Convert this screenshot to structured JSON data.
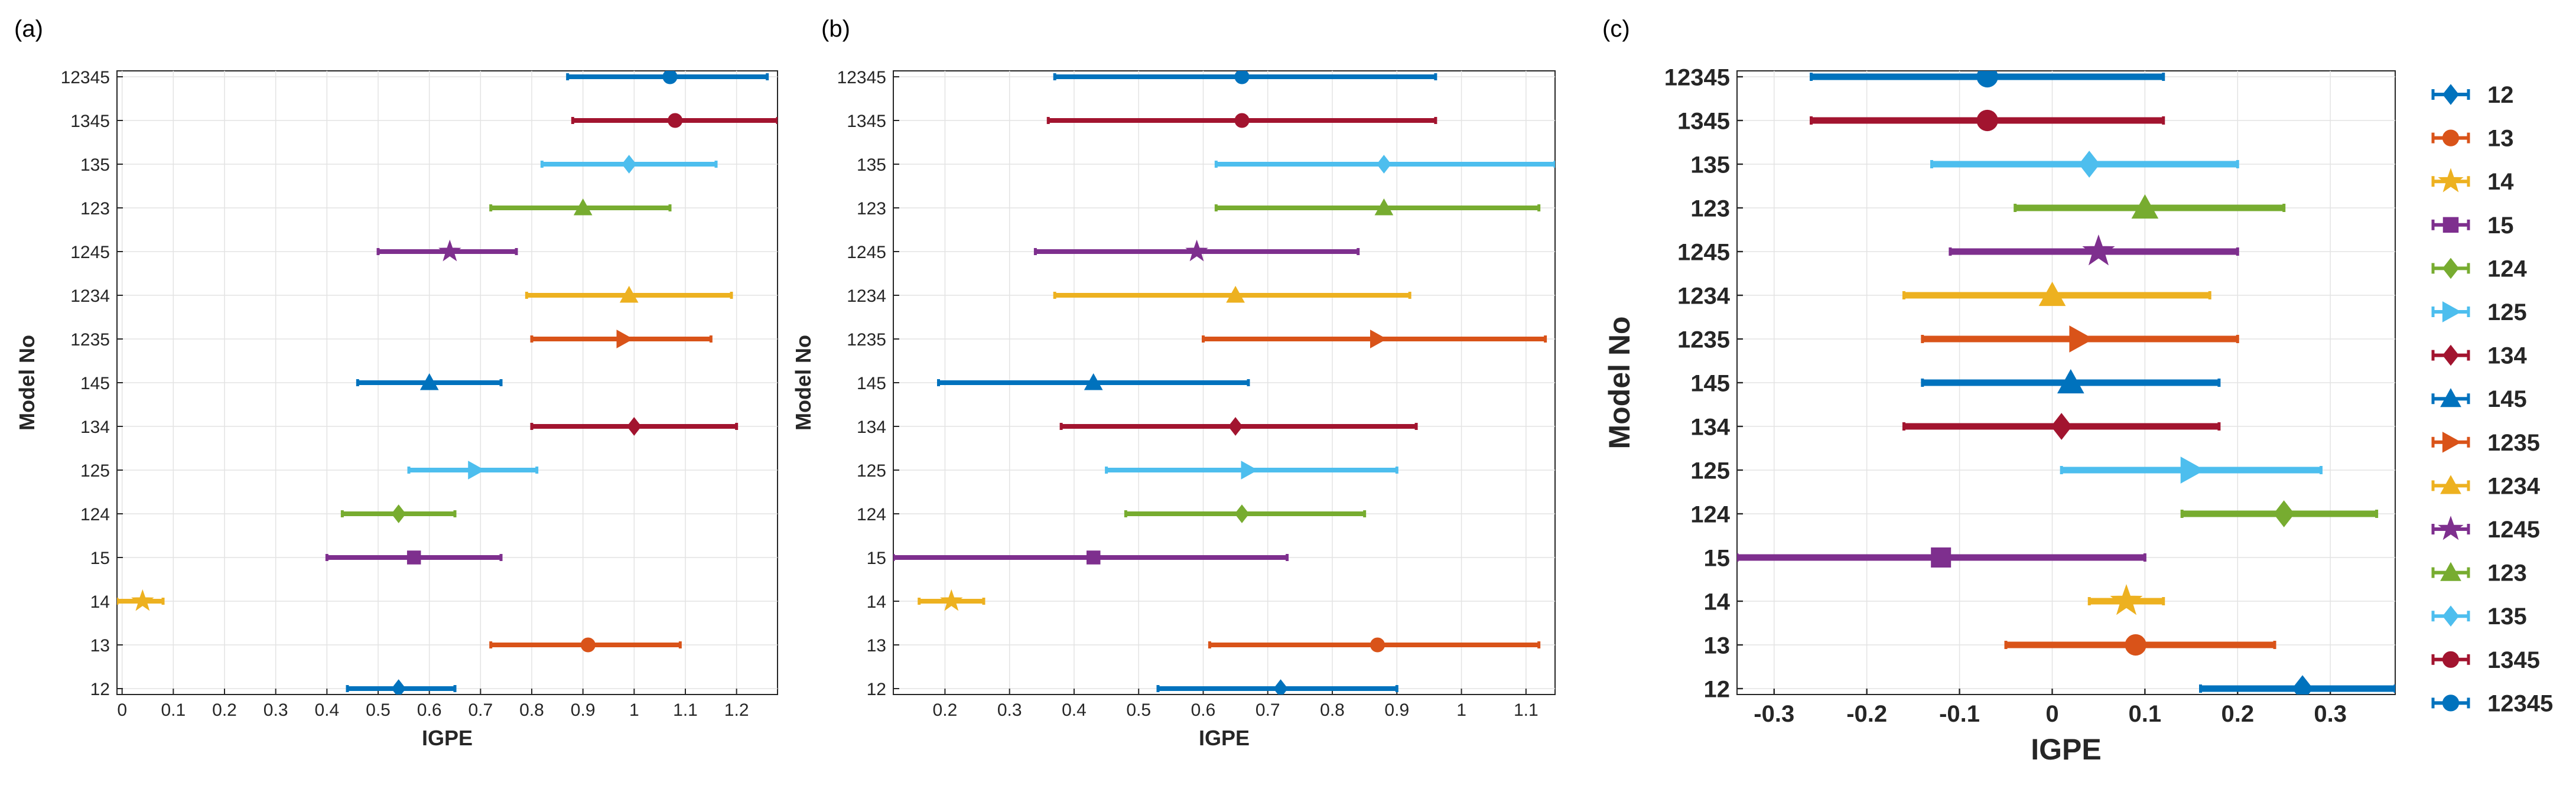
{
  "figure": {
    "panel_letters": [
      "(a)",
      "(b)",
      "(c)"
    ]
  },
  "chart_data": [
    {
      "type": "errorbar",
      "panel": "(a)",
      "xlabel": "IGPE",
      "ylabel": "Model No",
      "xlim": [
        -0.01,
        1.28
      ],
      "xticks": [
        0,
        0.1,
        0.2,
        0.3,
        0.4,
        0.5,
        0.6,
        0.7,
        0.8,
        0.9,
        1,
        1.1,
        1.2
      ],
      "xtick_labels": [
        "0",
        "0.1",
        "0.2",
        "0.3",
        "0.4",
        "0.5",
        "0.6",
        "0.7",
        "0.8",
        "0.9",
        "1",
        "1.1",
        "1.2"
      ],
      "categories": [
        "12",
        "13",
        "14",
        "15",
        "124",
        "125",
        "134",
        "145",
        "1235",
        "1234",
        "1245",
        "123",
        "135",
        "1345",
        "12345"
      ],
      "grid": true,
      "series": [
        {
          "model": "12",
          "mean": 0.54,
          "lower": 0.44,
          "upper": 0.65
        },
        {
          "model": "13",
          "mean": 0.91,
          "lower": 0.72,
          "upper": 1.09
        },
        {
          "model": "14",
          "mean": 0.04,
          "lower": -0.01,
          "upper": 0.08
        },
        {
          "model": "15",
          "mean": 0.57,
          "lower": 0.4,
          "upper": 0.74
        },
        {
          "model": "124",
          "mean": 0.54,
          "lower": 0.43,
          "upper": 0.65
        },
        {
          "model": "125",
          "mean": 0.69,
          "lower": 0.56,
          "upper": 0.81
        },
        {
          "model": "134",
          "mean": 1.0,
          "lower": 0.8,
          "upper": 1.2
        },
        {
          "model": "145",
          "mean": 0.6,
          "lower": 0.46,
          "upper": 0.74
        },
        {
          "model": "1235",
          "mean": 0.98,
          "lower": 0.8,
          "upper": 1.15
        },
        {
          "model": "1234",
          "mean": 0.99,
          "lower": 0.79,
          "upper": 1.19
        },
        {
          "model": "1245",
          "mean": 0.64,
          "lower": 0.5,
          "upper": 0.77
        },
        {
          "model": "123",
          "mean": 0.9,
          "lower": 0.72,
          "upper": 1.07
        },
        {
          "model": "135",
          "mean": 0.99,
          "lower": 0.82,
          "upper": 1.16
        },
        {
          "model": "1345",
          "mean": 1.08,
          "lower": 0.88,
          "upper": 1.28
        },
        {
          "model": "12345",
          "mean": 1.07,
          "lower": 0.87,
          "upper": 1.26
        }
      ]
    },
    {
      "type": "errorbar",
      "panel": "(b)",
      "xlabel": "IGPE",
      "ylabel": "Model No",
      "xlim": [
        0.12,
        1.145
      ],
      "xticks": [
        0.2,
        0.3,
        0.4,
        0.5,
        0.6,
        0.7,
        0.8,
        0.9,
        1,
        1.1
      ],
      "xtick_labels": [
        "0.2",
        "0.3",
        "0.4",
        "0.5",
        "0.6",
        "0.7",
        "0.8",
        "0.9",
        "1",
        "1.1"
      ],
      "categories": [
        "12",
        "13",
        "14",
        "15",
        "124",
        "125",
        "134",
        "145",
        "1235",
        "1234",
        "1245",
        "123",
        "135",
        "1345",
        "12345"
      ],
      "grid": true,
      "series": [
        {
          "model": "12",
          "mean": 0.72,
          "lower": 0.53,
          "upper": 0.9
        },
        {
          "model": "13",
          "mean": 0.87,
          "lower": 0.61,
          "upper": 1.12
        },
        {
          "model": "14",
          "mean": 0.21,
          "lower": 0.16,
          "upper": 0.26
        },
        {
          "model": "15",
          "mean": 0.43,
          "lower": 0.12,
          "upper": 0.73
        },
        {
          "model": "124",
          "mean": 0.66,
          "lower": 0.48,
          "upper": 0.85
        },
        {
          "model": "125",
          "mean": 0.67,
          "lower": 0.45,
          "upper": 0.9
        },
        {
          "model": "134",
          "mean": 0.65,
          "lower": 0.38,
          "upper": 0.93
        },
        {
          "model": "145",
          "mean": 0.43,
          "lower": 0.19,
          "upper": 0.67
        },
        {
          "model": "1235",
          "mean": 0.87,
          "lower": 0.6,
          "upper": 1.13
        },
        {
          "model": "1234",
          "mean": 0.65,
          "lower": 0.37,
          "upper": 0.92
        },
        {
          "model": "1245",
          "mean": 0.59,
          "lower": 0.34,
          "upper": 0.84
        },
        {
          "model": "123",
          "mean": 0.88,
          "lower": 0.62,
          "upper": 1.12
        },
        {
          "model": "135",
          "mean": 0.88,
          "lower": 0.62,
          "upper": 1.145
        },
        {
          "model": "1345",
          "mean": 0.66,
          "lower": 0.36,
          "upper": 0.96
        },
        {
          "model": "12345",
          "mean": 0.66,
          "lower": 0.37,
          "upper": 0.96
        }
      ]
    },
    {
      "type": "errorbar",
      "panel": "(c)",
      "xlabel": "IGPE",
      "ylabel": "Model No",
      "xlim": [
        -0.34,
        0.37
      ],
      "xticks": [
        -0.3,
        -0.2,
        -0.1,
        0,
        0.1,
        0.2,
        0.3
      ],
      "xtick_labels": [
        "-0.3",
        "-0.2",
        "-0.1",
        "0",
        "0.1",
        "0.2",
        "0.3"
      ],
      "categories": [
        "12",
        "13",
        "14",
        "15",
        "124",
        "125",
        "134",
        "145",
        "1235",
        "1234",
        "1245",
        "123",
        "135",
        "1345",
        "12345"
      ],
      "grid": true,
      "series": [
        {
          "model": "12",
          "mean": 0.27,
          "lower": 0.16,
          "upper": 0.37
        },
        {
          "model": "13",
          "mean": 0.09,
          "lower": -0.05,
          "upper": 0.24
        },
        {
          "model": "14",
          "mean": 0.08,
          "lower": 0.04,
          "upper": 0.12
        },
        {
          "model": "15",
          "mean": -0.12,
          "lower": -0.34,
          "upper": 0.1
        },
        {
          "model": "124",
          "mean": 0.25,
          "lower": 0.14,
          "upper": 0.35
        },
        {
          "model": "125",
          "mean": 0.15,
          "lower": 0.01,
          "upper": 0.29
        },
        {
          "model": "134",
          "mean": 0.01,
          "lower": -0.16,
          "upper": 0.18
        },
        {
          "model": "145",
          "mean": 0.02,
          "lower": -0.14,
          "upper": 0.18
        },
        {
          "model": "1235",
          "mean": 0.03,
          "lower": -0.14,
          "upper": 0.2
        },
        {
          "model": "1234",
          "mean": 0.0,
          "lower": -0.16,
          "upper": 0.17
        },
        {
          "model": "1245",
          "mean": 0.05,
          "lower": -0.11,
          "upper": 0.2
        },
        {
          "model": "123",
          "mean": 0.1,
          "lower": -0.04,
          "upper": 0.25
        },
        {
          "model": "135",
          "mean": 0.04,
          "lower": -0.13,
          "upper": 0.2
        },
        {
          "model": "1345",
          "mean": -0.07,
          "lower": -0.26,
          "upper": 0.12
        },
        {
          "model": "12345",
          "mean": -0.07,
          "lower": -0.26,
          "upper": 0.12
        }
      ]
    }
  ],
  "legend": {
    "placement": "right",
    "entries": [
      {
        "label": "12",
        "marker": "diamond",
        "color": "#0072BD"
      },
      {
        "label": "13",
        "marker": "circle",
        "color": "#D95319"
      },
      {
        "label": "14",
        "marker": "star",
        "color": "#EDB120"
      },
      {
        "label": "15",
        "marker": "square",
        "color": "#7E2F8E"
      },
      {
        "label": "124",
        "marker": "diamond",
        "color": "#77AC30"
      },
      {
        "label": "125",
        "marker": "triangle-right",
        "color": "#4DBEEE"
      },
      {
        "label": "134",
        "marker": "diamond",
        "color": "#A2142F"
      },
      {
        "label": "145",
        "marker": "triangle-up",
        "color": "#0072BD"
      },
      {
        "label": "1235",
        "marker": "triangle-right",
        "color": "#D95319"
      },
      {
        "label": "1234",
        "marker": "triangle-up",
        "color": "#EDB120"
      },
      {
        "label": "1245",
        "marker": "star",
        "color": "#7E2F8E"
      },
      {
        "label": "123",
        "marker": "triangle-up",
        "color": "#77AC30"
      },
      {
        "label": "135",
        "marker": "diamond",
        "color": "#4DBEEE"
      },
      {
        "label": "1345",
        "marker": "circle",
        "color": "#A2142F"
      },
      {
        "label": "12345",
        "marker": "circle",
        "color": "#0072BD"
      }
    ]
  }
}
